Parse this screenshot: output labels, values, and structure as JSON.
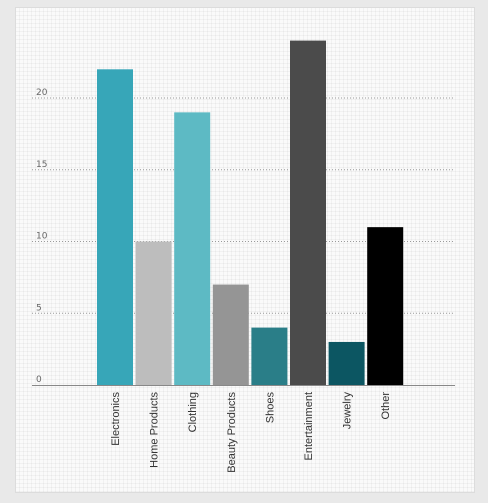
{
  "chart_data": {
    "type": "bar",
    "categories": [
      "Electronics",
      "Home Products",
      "Clothing",
      "Beauty Products",
      "Shoes",
      "Entertainment",
      "Jewelry",
      "Other"
    ],
    "values": [
      22,
      10,
      19,
      7,
      4,
      24,
      3,
      11
    ],
    "colors": [
      "#37a6b8",
      "#bdbdbd",
      "#5dbac4",
      "#959595",
      "#2a7e88",
      "#4b4b4b",
      "#0c5662",
      "#000000"
    ],
    "yticks": [
      0,
      5,
      10,
      15,
      20
    ],
    "ylim": [
      0,
      25
    ],
    "grid": true,
    "grid_style": "dotted horizontal",
    "title": "",
    "xlabel": "",
    "ylabel": ""
  }
}
